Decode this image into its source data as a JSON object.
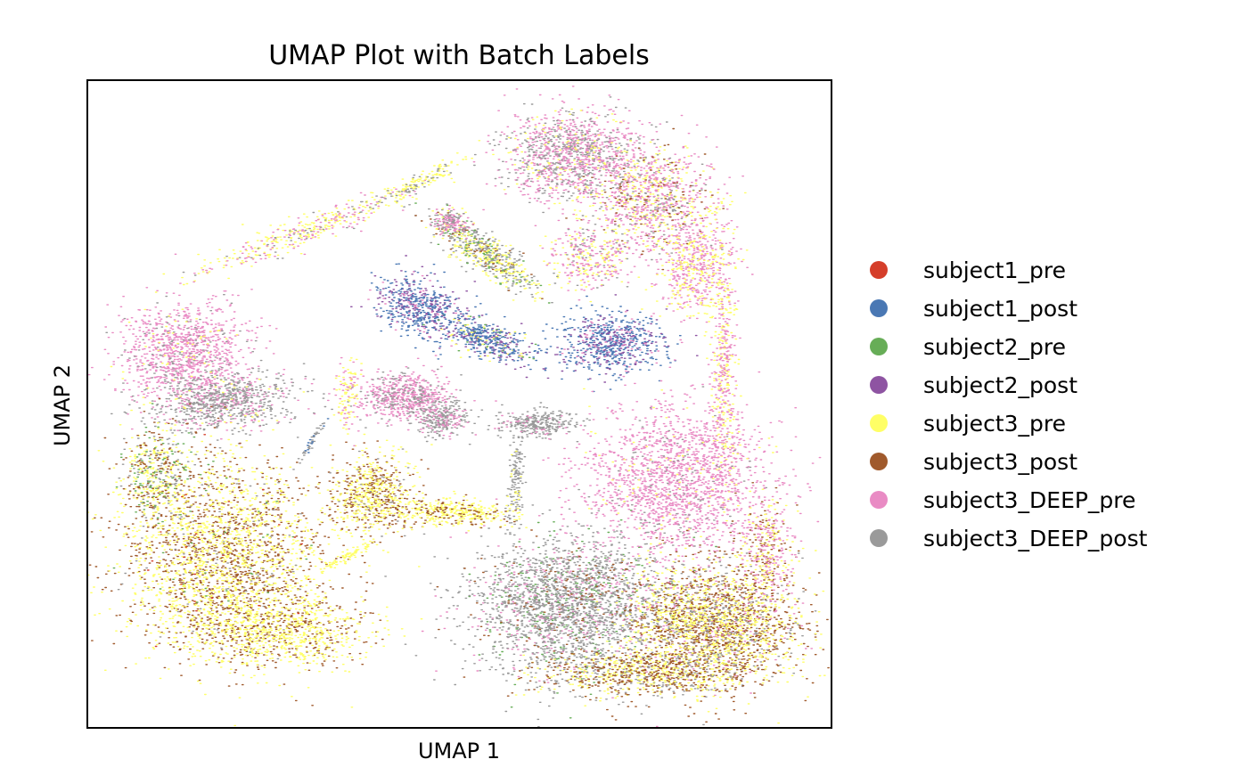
{
  "chart_data": {
    "type": "scatter",
    "title": "UMAP Plot with Batch Labels",
    "xlabel": "UMAP 1",
    "ylabel": "UMAP 2",
    "xticks": [],
    "yticks": [],
    "grid": false,
    "legend_position": "right",
    "series": [
      {
        "name": "subject1_pre",
        "color": "#d53e2a"
      },
      {
        "name": "subject1_post",
        "color": "#4a78b4"
      },
      {
        "name": "subject2_pre",
        "color": "#67ad57"
      },
      {
        "name": "subject2_post",
        "color": "#8e54a2"
      },
      {
        "name": "subject3_pre",
        "color": "#ffff66"
      },
      {
        "name": "subject3_post",
        "color": "#a05a2c"
      },
      {
        "name": "subject3_DEEP_pre",
        "color": "#e98bc4"
      },
      {
        "name": "subject3_DEEP_post",
        "color": "#9a9a9a"
      }
    ]
  }
}
